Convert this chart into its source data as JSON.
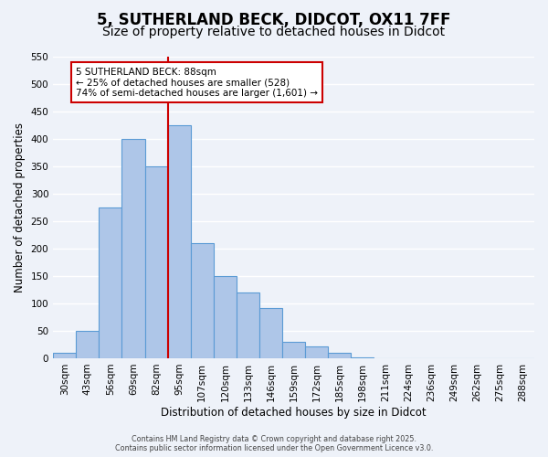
{
  "title": "5, SUTHERLAND BECK, DIDCOT, OX11 7FF",
  "subtitle": "Size of property relative to detached houses in Didcot",
  "xlabel": "Distribution of detached houses by size in Didcot",
  "ylabel": "Number of detached properties",
  "bin_labels": [
    "30sqm",
    "43sqm",
    "56sqm",
    "69sqm",
    "82sqm",
    "95sqm",
    "107sqm",
    "120sqm",
    "133sqm",
    "146sqm",
    "159sqm",
    "172sqm",
    "185sqm",
    "198sqm",
    "211sqm",
    "224sqm",
    "236sqm",
    "249sqm",
    "262sqm",
    "275sqm",
    "288sqm"
  ],
  "bar_values": [
    10,
    50,
    275,
    400,
    350,
    425,
    210,
    150,
    120,
    92,
    30,
    22,
    10,
    2,
    0,
    0,
    0,
    0,
    0,
    0,
    0
  ],
  "bar_color": "#aec6e8",
  "bar_edge_color": "#5b9bd5",
  "property_line_color": "#cc0000",
  "annotation_title": "5 SUTHERLAND BECK: 88sqm",
  "annotation_line1": "← 25% of detached houses are smaller (528)",
  "annotation_line2": "74% of semi-detached houses are larger (1,601) →",
  "annotation_box_color": "#ffffff",
  "annotation_box_edge": "#cc0000",
  "footer1": "Contains HM Land Registry data © Crown copyright and database right 2025.",
  "footer2": "Contains public sector information licensed under the Open Government Licence v3.0.",
  "ylim": [
    0,
    550
  ],
  "yticks": [
    0,
    50,
    100,
    150,
    200,
    250,
    300,
    350,
    400,
    450,
    500,
    550
  ],
  "background_color": "#eef2f9",
  "grid_color": "#ffffff",
  "title_fontsize": 12,
  "subtitle_fontsize": 10,
  "axis_label_fontsize": 8.5,
  "tick_fontsize": 7.5
}
